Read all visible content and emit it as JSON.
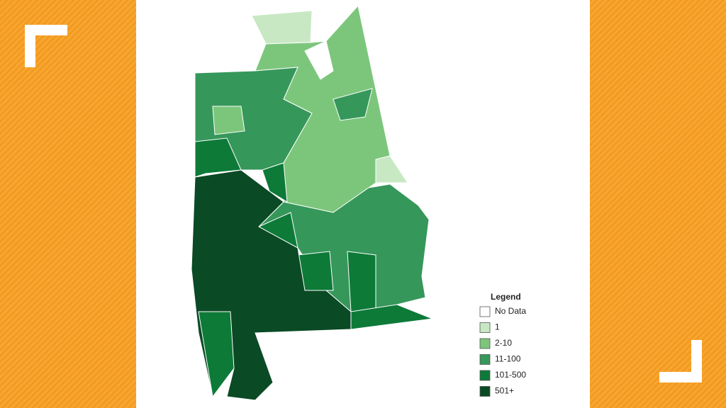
{
  "legend": {
    "title": "Legend",
    "items": [
      {
        "label": "No Data",
        "color": "#ffffff"
      },
      {
        "label": "1",
        "color": "#c8e8c4"
      },
      {
        "label": "2-10",
        "color": "#7cc67c"
      },
      {
        "label": "11-100",
        "color": "#36975a"
      },
      {
        "label": "101-500",
        "color": "#0d7a38"
      },
      {
        "label": "501+",
        "color": "#0a4a24"
      }
    ]
  }
}
